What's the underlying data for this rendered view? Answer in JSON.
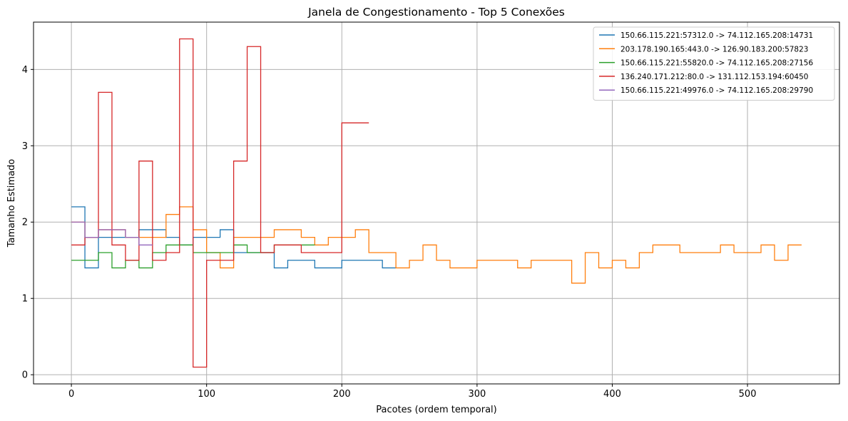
{
  "chart_data": {
    "type": "line",
    "title": "Janela de Congestionamento - Top 5 Conexões",
    "xlabel": "Pacotes (ordem temporal)",
    "ylabel": "Tamanho Estimado",
    "xlim": [
      -28,
      568
    ],
    "ylim": [
      -0.12,
      4.62
    ],
    "xticks": [
      0,
      100,
      200,
      300,
      400,
      500
    ],
    "yticks": [
      0,
      1,
      2,
      3,
      4
    ],
    "grid": true,
    "legend_position": "top-right",
    "series": [
      {
        "name": "150.66.115.221:57312.0 -> 74.112.165.208:14731",
        "color": "#1f77b4",
        "step_width": 10,
        "values": [
          2.2,
          1.4,
          1.8,
          1.8,
          1.8,
          1.9,
          1.9,
          1.8,
          1.7,
          1.8,
          1.8,
          1.9,
          1.6,
          1.6,
          1.6,
          1.4,
          1.5,
          1.5,
          1.4,
          1.4,
          1.5,
          1.5,
          1.5,
          1.4
        ]
      },
      {
        "name": "203.178.190.165:443.0 -> 126.90.183.200:57823",
        "color": "#ff7f0e",
        "step_width": 10,
        "values": [
          2.0,
          1.8,
          1.9,
          1.9,
          1.8,
          1.8,
          1.8,
          2.1,
          2.2,
          1.9,
          1.6,
          1.4,
          1.8,
          1.8,
          1.8,
          1.9,
          1.9,
          1.8,
          1.7,
          1.8,
          1.8,
          1.9,
          1.6,
          1.6,
          1.4,
          1.5,
          1.7,
          1.5,
          1.4,
          1.4,
          1.5,
          1.5,
          1.5,
          1.4,
          1.5,
          1.5,
          1.5,
          1.2,
          1.6,
          1.4,
          1.5,
          1.4,
          1.6,
          1.7,
          1.7,
          1.6,
          1.6,
          1.6,
          1.7,
          1.6,
          1.6,
          1.7,
          1.5,
          1.7
        ]
      },
      {
        "name": "150.66.115.221:55820.0 -> 74.112.165.208:27156",
        "color": "#2ca02c",
        "step_width": 10,
        "values": [
          1.5,
          1.5,
          1.6,
          1.4,
          1.5,
          1.4,
          1.6,
          1.7,
          1.7,
          1.6,
          1.6,
          1.6,
          1.7,
          1.6,
          1.6,
          1.7,
          1.7,
          1.7
        ]
      },
      {
        "name": "136.240.171.212:80.0 -> 131.112.153.194:60450",
        "color": "#d62728",
        "step_width": 10,
        "values": [
          1.7,
          1.8,
          3.7,
          1.7,
          1.5,
          2.8,
          1.5,
          1.6,
          4.4,
          0.1,
          1.5,
          1.5,
          2.8,
          4.3,
          1.6,
          1.7,
          1.7,
          1.6,
          1.6,
          1.6,
          3.3,
          3.3
        ]
      },
      {
        "name": "150.66.115.221:49976.0 -> 74.112.165.208:29790",
        "color": "#9467bd",
        "step_width": 10,
        "values": [
          2.0,
          1.8,
          1.9,
          1.9,
          1.8,
          1.7
        ]
      }
    ]
  }
}
